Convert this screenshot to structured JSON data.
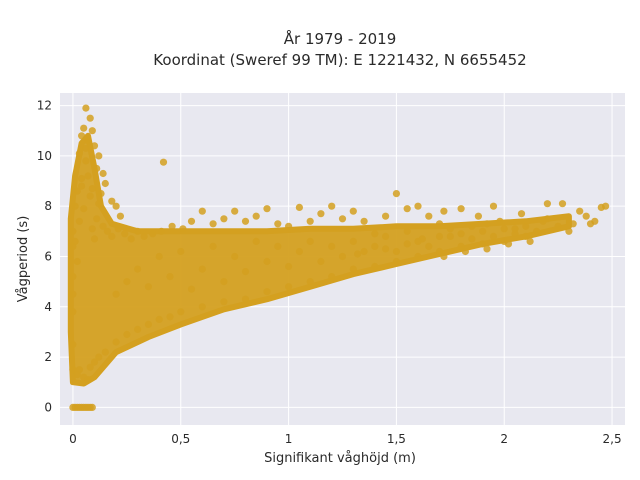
{
  "chart_data": {
    "type": "scatter",
    "title_line1": "År 1979 - 2019",
    "title_line2": "Koordinat (Sweref 99 TM): E 1221432, N 6655452",
    "xlabel": "Signifikant våghöjd (m)",
    "ylabel": "Vågperiod (s)",
    "xlim": [
      -0.06,
      2.56
    ],
    "ylim": [
      -0.7,
      12.5
    ],
    "x_ticks": [
      0,
      0.5,
      1,
      1.5,
      2,
      2.5
    ],
    "x_tick_labels": [
      "0",
      "0,5",
      "1",
      "1,5",
      "2",
      "2,5"
    ],
    "y_ticks": [
      0,
      2,
      4,
      6,
      8,
      10,
      12
    ],
    "y_tick_labels": [
      "0",
      "2",
      "4",
      "6",
      "8",
      "10",
      "12"
    ],
    "grid": true,
    "marker_color": "#D4A020",
    "background_color": "#E8E8F0",
    "points": [
      [
        0.0,
        0.0
      ],
      [
        0.01,
        0.0
      ],
      [
        0.02,
        0.0
      ],
      [
        0.03,
        0.0
      ],
      [
        0.04,
        0.0
      ],
      [
        0.05,
        0.0
      ],
      [
        0.06,
        0.0
      ],
      [
        0.07,
        0.0
      ],
      [
        0.08,
        0.0
      ],
      [
        0.09,
        0.0
      ],
      [
        0.06,
        11.9
      ],
      [
        0.08,
        11.5
      ],
      [
        0.05,
        11.1
      ],
      [
        0.09,
        11.0
      ],
      [
        0.04,
        10.8
      ],
      [
        0.07,
        10.6
      ],
      [
        0.1,
        10.4
      ],
      [
        0.03,
        10.1
      ],
      [
        0.12,
        10.0
      ],
      [
        0.06,
        9.8
      ],
      [
        0.11,
        9.5
      ],
      [
        0.14,
        9.3
      ],
      [
        0.04,
        9.1
      ],
      [
        0.15,
        8.9
      ],
      [
        0.09,
        8.7
      ],
      [
        0.18,
        8.2
      ],
      [
        0.2,
        8.0
      ],
      [
        0.22,
        7.6
      ],
      [
        0.13,
        8.5
      ],
      [
        0.02,
        8.6
      ],
      [
        0.42,
        9.75
      ],
      [
        0.6,
        7.8
      ],
      [
        0.75,
        7.8
      ],
      [
        0.9,
        7.9
      ],
      [
        1.05,
        7.95
      ],
      [
        1.2,
        8.0
      ],
      [
        1.5,
        8.5
      ],
      [
        1.6,
        8.0
      ],
      [
        1.8,
        7.9
      ],
      [
        1.95,
        8.0
      ],
      [
        2.08,
        7.7
      ],
      [
        2.2,
        8.1
      ],
      [
        2.27,
        8.1
      ],
      [
        2.35,
        7.8
      ],
      [
        2.45,
        7.95
      ],
      [
        2.47,
        8.0
      ],
      [
        2.4,
        7.3
      ],
      [
        2.3,
        7.0
      ],
      [
        2.2,
        7.5
      ],
      [
        2.1,
        7.2
      ],
      [
        2.05,
        7.1
      ],
      [
        1.98,
        7.4
      ],
      [
        1.85,
        7.2
      ],
      [
        1.75,
        6.8
      ],
      [
        1.7,
        7.3
      ],
      [
        1.62,
        6.7
      ],
      [
        1.55,
        6.5
      ],
      [
        1.45,
        6.3
      ],
      [
        1.4,
        6.9
      ],
      [
        1.32,
        6.1
      ],
      [
        0.02,
        1.3
      ],
      [
        0.03,
        1.5
      ],
      [
        0.05,
        1.2
      ],
      [
        0.07,
        1.1
      ],
      [
        0.08,
        1.6
      ],
      [
        0.1,
        1.8
      ],
      [
        0.12,
        2.0
      ],
      [
        0.15,
        2.2
      ],
      [
        0.2,
        2.6
      ],
      [
        0.25,
        2.9
      ],
      [
        0.3,
        3.1
      ],
      [
        0.35,
        3.3
      ],
      [
        0.4,
        3.5
      ],
      [
        0.45,
        3.6
      ],
      [
        0.5,
        3.8
      ],
      [
        0.6,
        4.0
      ],
      [
        0.7,
        4.2
      ],
      [
        0.8,
        4.3
      ],
      [
        0.9,
        4.6
      ],
      [
        1.0,
        4.8
      ],
      [
        1.1,
        5.0
      ],
      [
        1.2,
        5.2
      ],
      [
        1.3,
        5.5
      ],
      [
        1.4,
        5.6
      ],
      [
        1.5,
        5.8
      ],
      [
        1.6,
        6.0
      ],
      [
        1.7,
        6.2
      ],
      [
        1.8,
        6.4
      ],
      [
        1.9,
        6.5
      ],
      [
        2.0,
        6.6
      ],
      [
        0.0,
        1.5
      ],
      [
        0.0,
        2.5
      ],
      [
        0.0,
        3.8
      ],
      [
        0.0,
        4.5
      ],
      [
        0.0,
        5.2
      ],
      [
        0.0,
        6.4
      ],
      [
        0.0,
        7.0
      ],
      [
        0.01,
        8.0
      ],
      [
        0.01,
        6.6
      ],
      [
        0.02,
        5.8
      ],
      [
        0.03,
        7.4
      ],
      [
        0.04,
        8.8
      ],
      [
        0.05,
        7.9
      ],
      [
        0.06,
        10.3
      ],
      [
        0.07,
        9.2
      ],
      [
        0.08,
        8.4
      ],
      [
        0.09,
        7.1
      ],
      [
        0.1,
        6.7
      ],
      [
        0.11,
        7.5
      ],
      [
        0.12,
        8.1
      ],
      [
        0.14,
        7.2
      ],
      [
        0.16,
        7.0
      ],
      [
        0.18,
        6.8
      ],
      [
        0.21,
        7.1
      ],
      [
        0.24,
        6.9
      ],
      [
        0.27,
        6.7
      ],
      [
        0.3,
        7.0
      ],
      [
        0.33,
        6.8
      ],
      [
        0.37,
        6.9
      ],
      [
        0.41,
        7.0
      ],
      [
        0.46,
        7.2
      ],
      [
        0.51,
        7.1
      ],
      [
        0.55,
        7.4
      ],
      [
        0.65,
        7.3
      ],
      [
        0.7,
        7.5
      ],
      [
        0.8,
        7.4
      ],
      [
        0.85,
        7.6
      ],
      [
        0.95,
        7.3
      ],
      [
        1.0,
        7.2
      ],
      [
        1.1,
        7.4
      ],
      [
        1.15,
        7.7
      ],
      [
        1.25,
        7.5
      ],
      [
        1.3,
        7.8
      ],
      [
        1.35,
        7.4
      ],
      [
        1.45,
        7.6
      ],
      [
        1.55,
        7.9
      ],
      [
        1.65,
        7.6
      ],
      [
        1.72,
        7.8
      ],
      [
        1.88,
        7.6
      ],
      [
        1.92,
        7.3
      ],
      [
        0.2,
        4.5
      ],
      [
        0.25,
        5.0
      ],
      [
        0.3,
        5.5
      ],
      [
        0.35,
        4.8
      ],
      [
        0.4,
        6.0
      ],
      [
        0.45,
        5.2
      ],
      [
        0.5,
        6.2
      ],
      [
        0.55,
        4.7
      ],
      [
        0.6,
        5.5
      ],
      [
        0.65,
        6.4
      ],
      [
        0.7,
        5.0
      ],
      [
        0.75,
        6.0
      ],
      [
        0.8,
        5.4
      ],
      [
        0.85,
        6.6
      ],
      [
        0.9,
        5.8
      ],
      [
        0.95,
        6.4
      ],
      [
        1.0,
        5.6
      ],
      [
        1.05,
        6.2
      ],
      [
        1.1,
        6.6
      ],
      [
        1.15,
        5.8
      ],
      [
        1.2,
        6.4
      ],
      [
        1.25,
        6.0
      ],
      [
        1.3,
        6.6
      ],
      [
        1.35,
        6.2
      ],
      [
        1.4,
        6.4
      ],
      [
        1.45,
        6.8
      ],
      [
        1.5,
        6.2
      ],
      [
        1.55,
        7.0
      ],
      [
        1.6,
        6.6
      ],
      [
        1.65,
        6.4
      ],
      [
        1.7,
        6.8
      ],
      [
        1.75,
        7.1
      ],
      [
        1.8,
        6.9
      ],
      [
        1.85,
        6.7
      ],
      [
        1.9,
        7.0
      ],
      [
        1.95,
        6.8
      ],
      [
        2.0,
        7.1
      ],
      [
        2.05,
        6.9
      ],
      [
        2.1,
        6.8
      ],
      [
        2.15,
        7.0
      ],
      [
        2.18,
        7.4
      ],
      [
        2.25,
        7.2
      ],
      [
        2.32,
        7.3
      ],
      [
        2.38,
        7.6
      ],
      [
        2.42,
        7.4
      ],
      [
        2.12,
        6.6
      ],
      [
        2.02,
        6.5
      ],
      [
        1.92,
        6.3
      ],
      [
        1.82,
        6.2
      ],
      [
        1.72,
        6.0
      ]
    ]
  }
}
